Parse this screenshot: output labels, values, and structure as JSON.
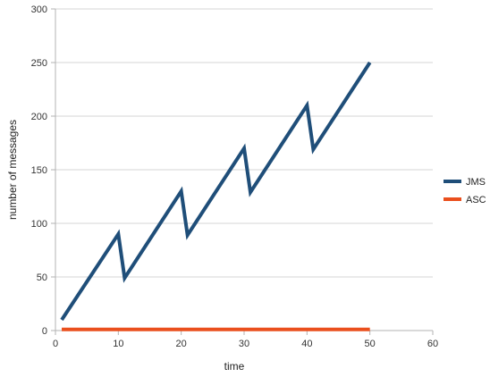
{
  "chart_data": {
    "type": "line",
    "xlabel": "time",
    "ylabel": "number of messages",
    "xlim": [
      0,
      60
    ],
    "ylim": [
      0,
      300
    ],
    "xticks": [
      0,
      10,
      20,
      30,
      40,
      50,
      60
    ],
    "yticks": [
      0,
      50,
      100,
      150,
      200,
      250,
      300
    ],
    "grid": "horizontal",
    "legend_position": "right",
    "series": [
      {
        "name": "JMS",
        "color": "#1f4e79",
        "x": [
          1,
          10,
          11,
          20,
          21,
          30,
          31,
          40,
          41,
          50
        ],
        "y": [
          10,
          90,
          49,
          130,
          89,
          170,
          129,
          210,
          169,
          250
        ]
      },
      {
        "name": "ASC",
        "color": "#ea4f1d",
        "x": [
          1,
          50
        ],
        "y": [
          1,
          1
        ]
      }
    ]
  }
}
